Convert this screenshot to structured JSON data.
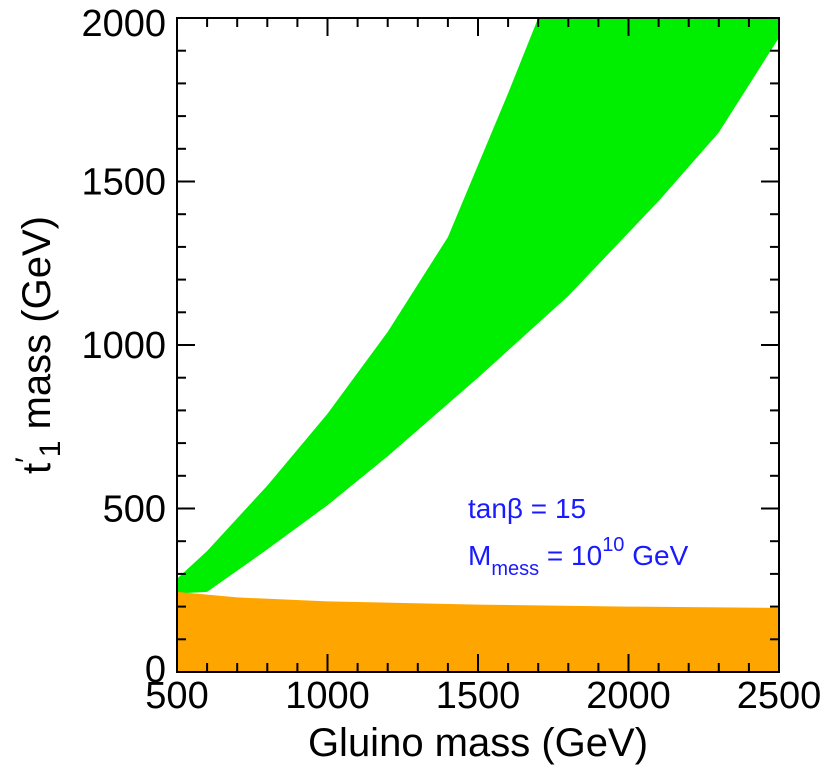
{
  "chart_data": {
    "type": "area",
    "xlabel": "Gluino mass  (GeV)",
    "ylabel": {
      "main": "t",
      "prime": "′",
      "sub": "1",
      "rest": " mass  (GeV)"
    },
    "xlim": [
      500,
      2500
    ],
    "ylim": [
      0,
      2000
    ],
    "x_ticks": [
      500,
      1000,
      1500,
      2000,
      2500
    ],
    "x_tick_labels": [
      "500",
      "1000",
      "1500",
      "2000",
      "2500"
    ],
    "y_ticks": [
      0,
      500,
      1000,
      1500,
      2000
    ],
    "y_tick_labels": [
      "0",
      "500",
      "1000",
      "1500",
      "2000"
    ],
    "grid": false,
    "annotations": {
      "tanb": "tanβ = 15",
      "mmess_main": "M",
      "mmess_sub": "mess",
      "mmess_eq": " = 10",
      "mmess_exp": "10",
      "mmess_unit": " GeV"
    },
    "series": [
      {
        "color": "#00ee00",
        "upper": {
          "x": [
            500,
            600,
            800,
            1000,
            1200,
            1400,
            1600,
            1700
          ],
          "y": [
            285,
            370,
            570,
            790,
            1040,
            1330,
            1770,
            2000
          ]
        },
        "lower": {
          "x": [
            500,
            600,
            800,
            1000,
            1200,
            1500,
            1800,
            2100,
            2300,
            2500
          ],
          "y": [
            240,
            245,
            375,
            510,
            660,
            900,
            1150,
            1440,
            1650,
            1940
          ]
        },
        "top_edge": {
          "x": [
            1700,
            2500
          ],
          "y": [
            2000,
            2000
          ]
        }
      },
      {
        "color": "#ffa500",
        "upper": {
          "x": [
            500,
            700,
            1000,
            1500,
            2000,
            2500
          ],
          "y": [
            245,
            228,
            216,
            206,
            200,
            196
          ]
        },
        "lower": {
          "x": [
            500,
            2500
          ],
          "y": [
            0,
            0
          ]
        }
      }
    ]
  }
}
